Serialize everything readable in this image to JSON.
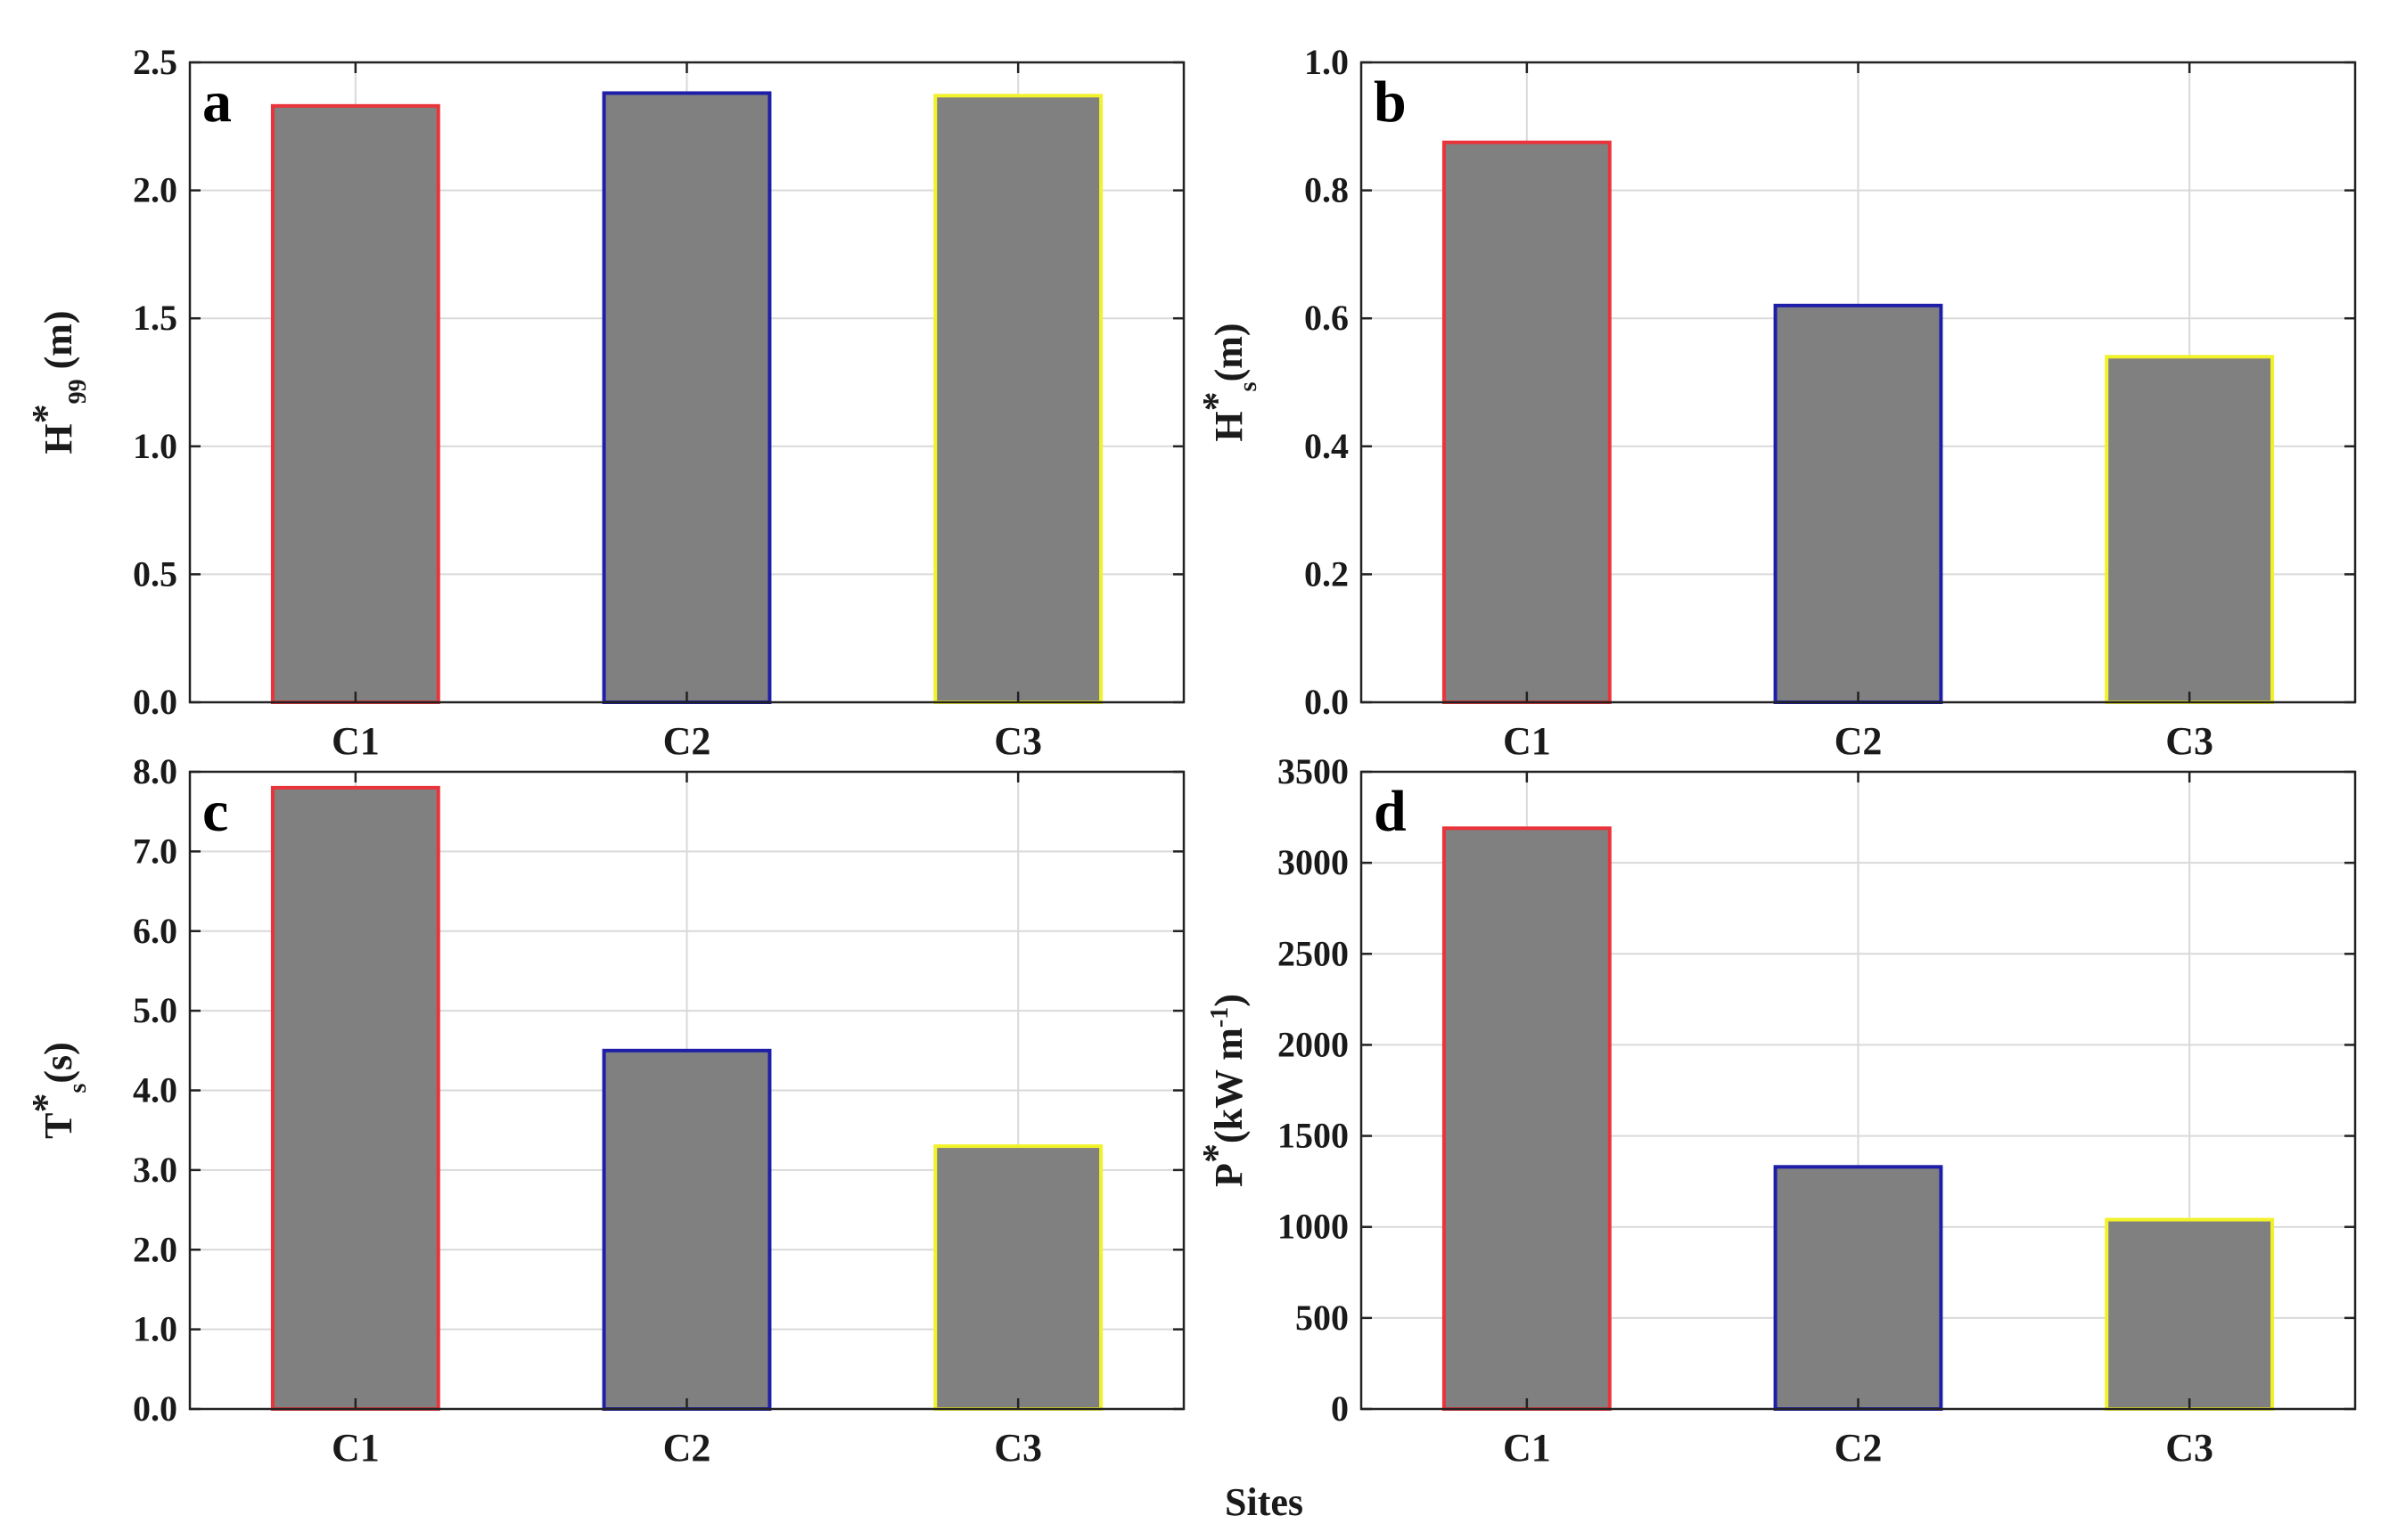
{
  "figure": {
    "xlabel": "Sites"
  },
  "colors": {
    "bar_fill": "#808080",
    "grid": "#d9d9d9",
    "C1": "#e8343a",
    "C2": "#1e1ea8",
    "C3": "#f2f22c"
  },
  "chart_data": [
    {
      "id": "a",
      "type": "bar",
      "panel_label": "a",
      "categories": [
        "C1",
        "C2",
        "C3"
      ],
      "values": [
        2.33,
        2.38,
        2.37
      ],
      "ylabel": {
        "main": "H",
        "sup": "*",
        "sub": "99",
        "unit": " (m)"
      },
      "ylim": [
        0,
        2.5
      ],
      "yticks": [
        0,
        0.5,
        1.0,
        1.5,
        2.0,
        2.5
      ],
      "ytick_labels": [
        "0.0",
        "0.5",
        "1.0",
        "1.5",
        "2.0",
        "2.5"
      ],
      "grid": true
    },
    {
      "id": "b",
      "type": "bar",
      "panel_label": "b",
      "categories": [
        "C1",
        "C2",
        "C3"
      ],
      "values": [
        0.875,
        0.62,
        0.54
      ],
      "ylabel": {
        "main": "H",
        "sup": "*",
        "sub": "s",
        "unit": "(m)"
      },
      "ylim": [
        0,
        1.0
      ],
      "yticks": [
        0,
        0.2,
        0.4,
        0.6,
        0.8,
        1.0
      ],
      "ytick_labels": [
        "0.0",
        "0.2",
        "0.4",
        "0.6",
        "0.8",
        "1.0"
      ],
      "grid": true
    },
    {
      "id": "c",
      "type": "bar",
      "panel_label": "c",
      "categories": [
        "C1",
        "C2",
        "C3"
      ],
      "values": [
        7.8,
        4.5,
        3.3
      ],
      "ylabel": {
        "main": "T",
        "sup": "*",
        "sub": "s",
        "unit": "(s)"
      },
      "ylim": [
        0,
        8.0
      ],
      "yticks": [
        0,
        1,
        2,
        3,
        4,
        5,
        6,
        7,
        8
      ],
      "ytick_labels": [
        "0.0",
        "1.0",
        "2.0",
        "3.0",
        "4.0",
        "5.0",
        "6.0",
        "7.0",
        "8.0"
      ],
      "grid": true
    },
    {
      "id": "d",
      "type": "bar",
      "panel_label": "d",
      "categories": [
        "C1",
        "C2",
        "C3"
      ],
      "values": [
        3190,
        1330,
        1040
      ],
      "ylabel": {
        "main": "P",
        "sup": "*",
        "unit": "(kW m",
        "unit_sup": "-1",
        "unit_end": ")"
      },
      "ylim": [
        0,
        3500
      ],
      "yticks": [
        0,
        500,
        1000,
        1500,
        2000,
        2500,
        3000,
        3500
      ],
      "ytick_labels": [
        "0",
        "500",
        "1000",
        "1500",
        "2000",
        "2500",
        "3000",
        "3500"
      ],
      "grid": true
    }
  ]
}
